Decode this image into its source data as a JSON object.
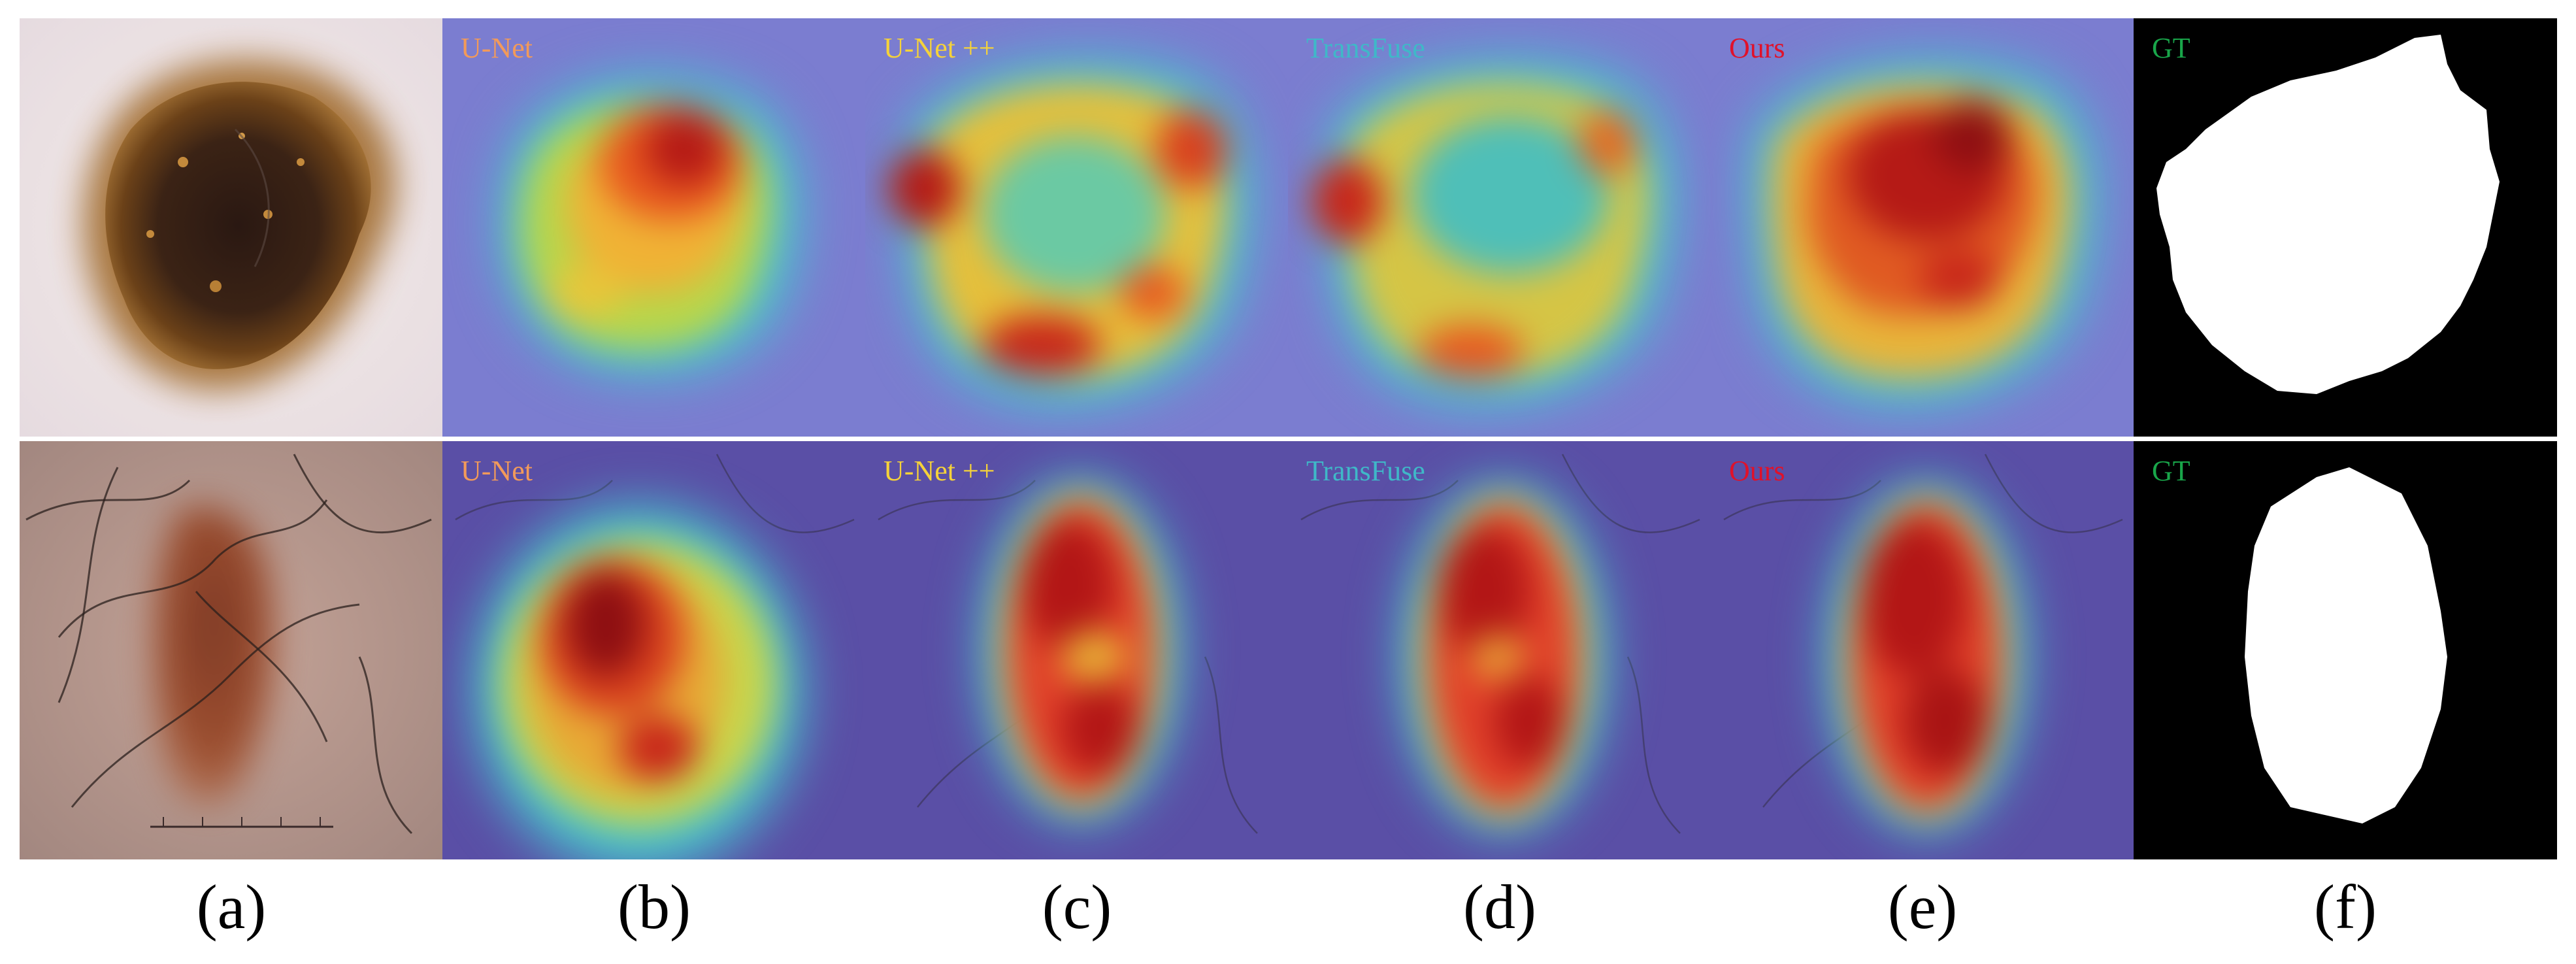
{
  "figure": {
    "rows": [
      {
        "tiles": [
          {
            "kind": "input",
            "label": ""
          },
          {
            "kind": "heatmap",
            "label": "U-Net",
            "label_color": "#f29a5a"
          },
          {
            "kind": "heatmap",
            "label": "U-Net ++",
            "label_color": "#f5d23a"
          },
          {
            "kind": "heatmap",
            "label": "TransFuse",
            "label_color": "#3fb8c8"
          },
          {
            "kind": "heatmap",
            "label": "Ours",
            "label_color": "#e0112a"
          },
          {
            "kind": "mask",
            "label": "GT",
            "label_color": "#19a64a"
          }
        ]
      },
      {
        "tiles": [
          {
            "kind": "input",
            "label": ""
          },
          {
            "kind": "heatmap",
            "label": "U-Net",
            "label_color": "#f29a5a"
          },
          {
            "kind": "heatmap",
            "label": "U-Net ++",
            "label_color": "#f5d23a"
          },
          {
            "kind": "heatmap",
            "label": "TransFuse",
            "label_color": "#3fb8c8"
          },
          {
            "kind": "heatmap",
            "label": "Ours",
            "label_color": "#e0112a"
          },
          {
            "kind": "mask",
            "label": "GT",
            "label_color": "#19a64a"
          }
        ]
      }
    ],
    "column_captions": [
      "(a)",
      "(b)",
      "(c)",
      "(d)",
      "(e)",
      "(f)"
    ],
    "colors": {
      "heatmap_background": "#7b7dd0",
      "mask_foreground": "#ffffff",
      "mask_background": "#000000"
    }
  }
}
